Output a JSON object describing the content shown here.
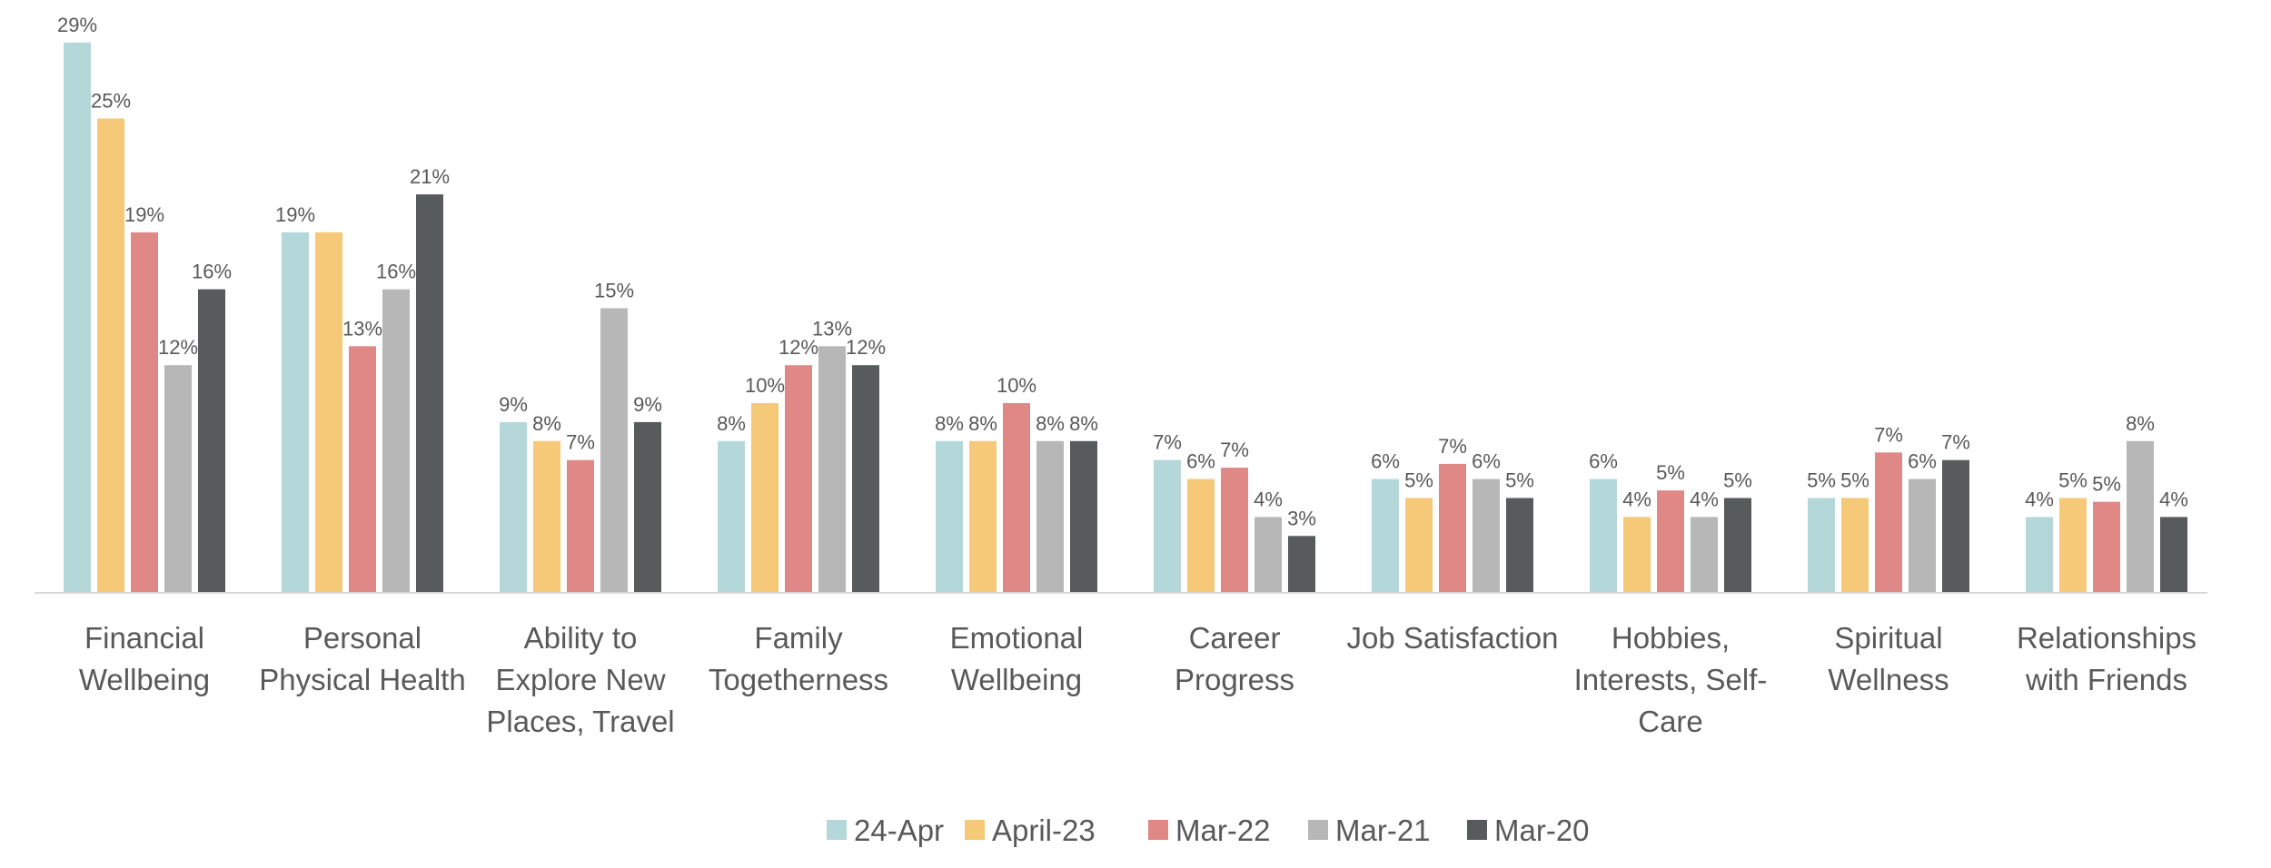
{
  "chart_data": {
    "type": "bar",
    "title": "",
    "xlabel": "",
    "ylabel": "",
    "ylim": [
      0,
      30
    ],
    "grid": false,
    "legend_position": "bottom-center",
    "categories": [
      [
        "Financial",
        "Wellbeing"
      ],
      [
        "Personal",
        "Physical Health"
      ],
      [
        "Ability to",
        "Explore New",
        "Places, Travel"
      ],
      [
        "Family",
        "Togetherness"
      ],
      [
        "Emotional",
        "Wellbeing"
      ],
      [
        "Career",
        "Progress"
      ],
      [
        "Job Satisfaction"
      ],
      [
        "Hobbies,",
        "Interests, Self-",
        "Care"
      ],
      [
        "Spiritual",
        "Wellness"
      ],
      [
        "Relationships",
        "with Friends"
      ]
    ],
    "series": [
      {
        "name": "24-Apr",
        "color": "#b4d8da",
        "values": [
          29,
          19,
          9,
          8,
          8,
          7,
          6,
          6,
          5,
          4
        ],
        "labels": [
          "29%",
          "19%",
          "9%",
          "8%",
          "8%",
          "7%",
          "6%",
          "6%",
          "5%",
          "4%"
        ]
      },
      {
        "name": "April-23",
        "color": "#f5c978",
        "values": [
          25,
          19,
          8,
          10,
          8,
          6,
          5,
          4,
          5,
          5
        ],
        "labels": [
          "25%",
          "",
          "8%",
          "10%",
          "8%",
          "6%",
          "5%",
          "4%",
          "5%",
          "5%"
        ]
      },
      {
        "name": "Mar-22",
        "color": "#e08885",
        "values": [
          19,
          13,
          7,
          12,
          10,
          6.6,
          6.8,
          5.4,
          7.4,
          4.8
        ],
        "labels": [
          "19%",
          "13%",
          "7%",
          "12%",
          "10%",
          "7%",
          "7%",
          "5%",
          "7%",
          "5%"
        ]
      },
      {
        "name": "Mar-21",
        "color": "#b7b7b7",
        "values": [
          12,
          16,
          15,
          13,
          8,
          4,
          6,
          4,
          6,
          8
        ],
        "labels": [
          "12%",
          "16%",
          "15%",
          "13%",
          "8%",
          "4%",
          "6%",
          "4%",
          "6%",
          "8%"
        ]
      },
      {
        "name": "Mar-20",
        "color": "#575b5b",
        "values": [
          16,
          21,
          9,
          12,
          8,
          3,
          5,
          5,
          7,
          4
        ],
        "labels": [
          "16%",
          "21%",
          "9%",
          "12%",
          "8%",
          "3%",
          "5%",
          "5%",
          "7%",
          "4%"
        ]
      }
    ]
  }
}
